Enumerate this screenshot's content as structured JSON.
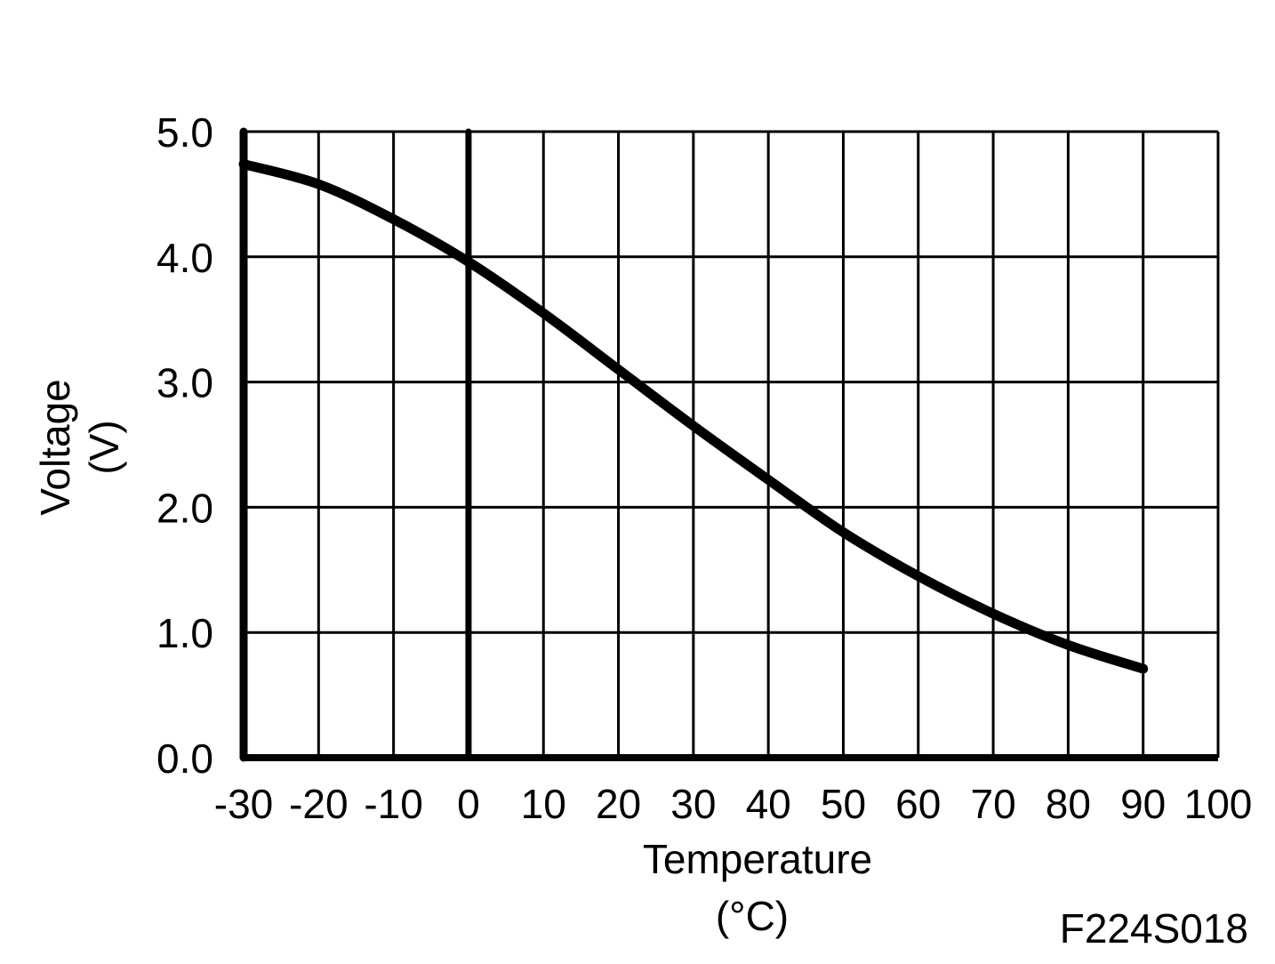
{
  "figure_code": "F224S018",
  "chart_data": {
    "type": "line",
    "title": "",
    "xlabel": "Temperature",
    "xlabel_unit": "(°C)",
    "ylabel": "Voltage",
    "ylabel_unit": "(V)",
    "xlim": [
      -30,
      100
    ],
    "ylim": [
      0,
      5
    ],
    "x_ticks": [
      -30,
      -20,
      -10,
      0,
      10,
      20,
      30,
      40,
      50,
      60,
      70,
      80,
      90,
      100
    ],
    "x_tick_labels": [
      "-30",
      "-20",
      "-10",
      "0",
      "10",
      "20",
      "30",
      "40",
      "50",
      "60",
      "70",
      "80",
      "90",
      "100"
    ],
    "y_ticks": [
      0,
      1,
      2,
      3,
      4,
      5
    ],
    "y_tick_labels": [
      "0.0",
      "1.0",
      "2.0",
      "3.0",
      "4.0",
      "5.0"
    ],
    "grid": true,
    "legend": "none",
    "series": [
      {
        "x": [
          -30,
          -20,
          -10,
          0,
          10,
          20,
          30,
          40,
          50,
          60,
          70,
          80,
          90
        ],
        "y": [
          4.74,
          4.58,
          4.3,
          3.96,
          3.55,
          3.1,
          2.65,
          2.22,
          1.8,
          1.45,
          1.15,
          0.9,
          0.71
        ]
      }
    ]
  }
}
